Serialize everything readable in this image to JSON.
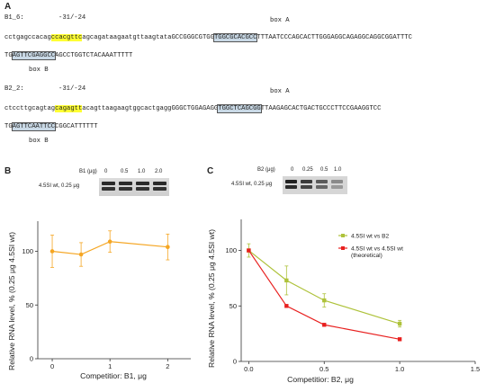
{
  "panel_a": {
    "letter": "A",
    "sequences": [
      {
        "name": "B1_6:",
        "position_label": "-31/-24",
        "box_a_label": "box A",
        "box_b_label": "box B",
        "line1_pre": "cctgagccacag",
        "line1_hl": "ccacgttc",
        "line1_mid": "agcagataagaatgttaagtataGCCGGGCGTGG",
        "line1_box": "TGGCGCACGCC",
        "line1_post": "TTTAATCCCAGCACTTGGGAGGCAGAGGCAGGCGGATTTC",
        "line2_pre": "TG",
        "line2_box": "AGTTCGAGGCC",
        "line2_post": "AGCCTGGTCTACAAATTTTT"
      },
      {
        "name": "B2_2:",
        "position_label": "-31/-24",
        "box_a_label": "box A",
        "box_b_label": "box B",
        "line1_pre": "ctccttgcagtag",
        "line1_hl": "cagagtt",
        "line1_mid": "acagttaagaagtggcactgaggGGGCTGGAGAGG",
        "line1_box": "TGGCTCAGCGG",
        "line1_post": "TTAAGAGCACTGACTGCCCTTCCGAAGGTCC",
        "line2_pre": "TG",
        "line2_box": "AGTTCAATTCC",
        "line2_post": "CGGCATTTTTT"
      }
    ]
  },
  "panel_b": {
    "letter": "B",
    "gel_header_label": "B1 (μg)",
    "gel_lane_labels": [
      "0",
      "0.5",
      "1.0",
      "2.0"
    ],
    "gel_row_label": "4.5SI wt, 0.25 μg",
    "chart_data": {
      "type": "line",
      "x": [
        0,
        0.5,
        1,
        2
      ],
      "series": [
        {
          "values": [
            100,
            97,
            109,
            104
          ],
          "errors": [
            15,
            11,
            10,
            12
          ],
          "color": "#f5a623"
        }
      ],
      "xlabel": "Competitior: B1, μg",
      "ylabel": "Relative RNA level, % (0.25 μg 4.5SI wt)",
      "xticks": [
        "0",
        "1",
        "2"
      ],
      "yticks": [
        "0",
        "50",
        "100"
      ],
      "xlim": [
        -0.25,
        2.4
      ],
      "ylim": [
        0,
        128
      ],
      "grid": false
    }
  },
  "panel_c": {
    "letter": "C",
    "gel_header_label": "B2 (μg)",
    "gel_lane_labels": [
      "0",
      "0.25",
      "0.5",
      "1.0"
    ],
    "gel_row_label": "4.5SI wt, 0.25 μg",
    "chart_data": {
      "type": "line",
      "x": [
        0,
        0.25,
        0.5,
        1
      ],
      "series": [
        {
          "name": "4.5SI wt vs B2",
          "values": [
            100,
            73,
            55,
            34
          ],
          "errors": [
            6,
            13,
            6,
            3
          ],
          "color": "#aec23a"
        },
        {
          "name": "4.5SI wt vs 4.5SI wt (theoretical)",
          "values": [
            100,
            50,
            33,
            20
          ],
          "errors": [
            0,
            0,
            0,
            0
          ],
          "color": "#e8201f"
        }
      ],
      "xlabel": "Competitior: B2, μg",
      "ylabel": "Relative RNA level, % (0.25 μg 4.5SI wt)",
      "xticks": [
        "0.0",
        "0.5",
        "1.0",
        "1.5"
      ],
      "yticks": [
        "0",
        "50",
        "100"
      ],
      "xlim": [
        -0.05,
        1.5
      ],
      "ylim": [
        0,
        128
      ],
      "legend": "top-right",
      "grid": false
    }
  }
}
